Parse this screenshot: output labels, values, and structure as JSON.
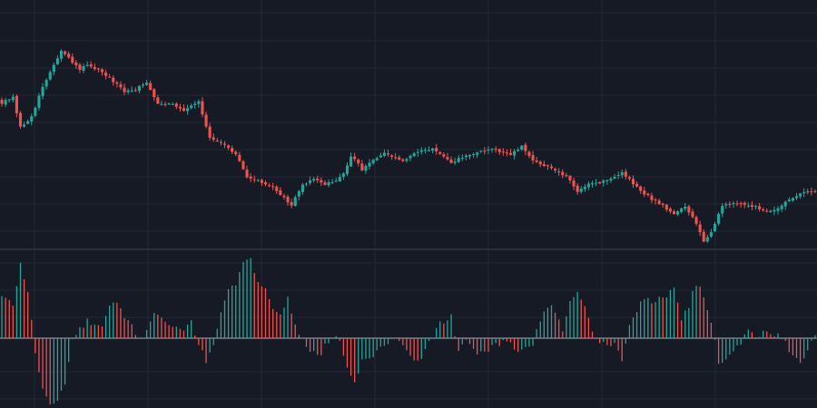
{
  "colors": {
    "background": "#161a25",
    "grid": "#232838",
    "pane_separator": "#2a2e39",
    "zero_line": "#aab0bc",
    "up": "#26a69a",
    "down": "#ef5350"
  },
  "chart_data": [
    {
      "type": "candlestick",
      "pane": "price",
      "title": "",
      "xlabel": "",
      "ylabel": "",
      "grid": true,
      "legend": "none",
      "ylim": [
        24,
        300
      ],
      "candle_count": 220,
      "close_keypoints": [
        [
          0,
          186
        ],
        [
          3,
          191
        ],
        [
          5,
          158
        ],
        [
          8,
          171
        ],
        [
          11,
          203
        ],
        [
          14,
          228
        ],
        [
          16,
          243
        ],
        [
          18,
          235
        ],
        [
          21,
          222
        ],
        [
          23,
          229
        ],
        [
          26,
          222
        ],
        [
          29,
          213
        ],
        [
          33,
          198
        ],
        [
          36,
          201
        ],
        [
          39,
          208
        ],
        [
          42,
          186
        ],
        [
          46,
          184
        ],
        [
          49,
          178
        ],
        [
          53,
          188
        ],
        [
          56,
          146
        ],
        [
          60,
          138
        ],
        [
          63,
          128
        ],
        [
          66,
          104
        ],
        [
          70,
          97
        ],
        [
          73,
          93
        ],
        [
          76,
          80
        ],
        [
          78,
          72
        ],
        [
          81,
          95
        ],
        [
          84,
          100
        ],
        [
          87,
          96
        ],
        [
          90,
          99
        ],
        [
          92,
          106
        ],
        [
          94,
          127
        ],
        [
          97,
          112
        ],
        [
          100,
          122
        ],
        [
          103,
          129
        ],
        [
          106,
          124
        ],
        [
          108,
          121
        ],
        [
          110,
          126
        ],
        [
          113,
          133
        ],
        [
          116,
          135
        ],
        [
          119,
          125
        ],
        [
          121,
          118
        ],
        [
          123,
          124
        ],
        [
          126,
          128
        ],
        [
          129,
          132
        ],
        [
          132,
          134
        ],
        [
          135,
          130
        ],
        [
          137,
          128
        ],
        [
          140,
          137
        ],
        [
          143,
          121
        ],
        [
          146,
          117
        ],
        [
          149,
          110
        ],
        [
          152,
          104
        ],
        [
          155,
          87
        ],
        [
          158,
          97
        ],
        [
          161,
          97
        ],
        [
          164,
          102
        ],
        [
          167,
          108
        ],
        [
          169,
          100
        ],
        [
          172,
          88
        ],
        [
          175,
          79
        ],
        [
          178,
          72
        ],
        [
          181,
          62
        ],
        [
          184,
          70
        ],
        [
          187,
          52
        ],
        [
          189,
          33
        ],
        [
          191,
          42
        ],
        [
          194,
          72
        ],
        [
          197,
          75
        ],
        [
          200,
          71
        ],
        [
          203,
          71
        ],
        [
          206,
          65
        ],
        [
          209,
          69
        ],
        [
          212,
          77
        ],
        [
          215,
          86
        ],
        [
          217,
          88
        ],
        [
          219,
          88
        ]
      ]
    },
    {
      "type": "histogram",
      "pane": "oscillator",
      "title": "",
      "xlabel": "",
      "ylabel": "",
      "grid": true,
      "legend": "none",
      "ylim": [
        -80,
        80
      ],
      "bar_count": 220,
      "value_keypoints": [
        [
          0,
          38
        ],
        [
          3,
          30
        ],
        [
          5,
          68
        ],
        [
          7,
          42
        ],
        [
          9,
          -12
        ],
        [
          11,
          -48
        ],
        [
          13,
          -60
        ],
        [
          15,
          -58
        ],
        [
          17,
          -40
        ],
        [
          19,
          -2
        ],
        [
          21,
          8
        ],
        [
          23,
          15
        ],
        [
          25,
          12
        ],
        [
          27,
          10
        ],
        [
          29,
          28
        ],
        [
          31,
          32
        ],
        [
          33,
          18
        ],
        [
          35,
          12
        ],
        [
          37,
          -2
        ],
        [
          39,
          8
        ],
        [
          41,
          24
        ],
        [
          43,
          20
        ],
        [
          45,
          12
        ],
        [
          47,
          8
        ],
        [
          49,
          6
        ],
        [
          51,
          18
        ],
        [
          53,
          -8
        ],
        [
          55,
          -20
        ],
        [
          57,
          -4
        ],
        [
          59,
          22
        ],
        [
          61,
          42
        ],
        [
          63,
          50
        ],
        [
          65,
          68
        ],
        [
          67,
          70
        ],
        [
          69,
          52
        ],
        [
          71,
          48
        ],
        [
          73,
          28
        ],
        [
          75,
          20
        ],
        [
          77,
          36
        ],
        [
          79,
          14
        ],
        [
          81,
          -2
        ],
        [
          83,
          -10
        ],
        [
          85,
          -18
        ],
        [
          87,
          -8
        ],
        [
          89,
          -2
        ],
        [
          91,
          0
        ],
        [
          93,
          -28
        ],
        [
          95,
          -40
        ],
        [
          97,
          -22
        ],
        [
          99,
          -18
        ],
        [
          101,
          -12
        ],
        [
          103,
          -6
        ],
        [
          105,
          -2
        ],
        [
          107,
          -2
        ],
        [
          109,
          -12
        ],
        [
          111,
          -22
        ],
        [
          113,
          -20
        ],
        [
          115,
          -4
        ],
        [
          117,
          10
        ],
        [
          119,
          15
        ],
        [
          121,
          20
        ],
        [
          123,
          -12
        ],
        [
          125,
          -4
        ],
        [
          127,
          -10
        ],
        [
          129,
          -14
        ],
        [
          131,
          -12
        ],
        [
          133,
          -6
        ],
        [
          135,
          -4
        ],
        [
          137,
          -6
        ],
        [
          139,
          -12
        ],
        [
          141,
          -6
        ],
        [
          143,
          -4
        ],
        [
          145,
          18
        ],
        [
          147,
          30
        ],
        [
          149,
          24
        ],
        [
          151,
          8
        ],
        [
          153,
          32
        ],
        [
          155,
          44
        ],
        [
          157,
          30
        ],
        [
          159,
          4
        ],
        [
          161,
          -2
        ],
        [
          163,
          -4
        ],
        [
          165,
          -6
        ],
        [
          167,
          -20
        ],
        [
          169,
          12
        ],
        [
          171,
          26
        ],
        [
          173,
          38
        ],
        [
          175,
          30
        ],
        [
          177,
          36
        ],
        [
          179,
          40
        ],
        [
          181,
          46
        ],
        [
          183,
          18
        ],
        [
          185,
          30
        ],
        [
          187,
          50
        ],
        [
          189,
          38
        ],
        [
          191,
          16
        ],
        [
          193,
          -22
        ],
        [
          195,
          -18
        ],
        [
          197,
          -10
        ],
        [
          199,
          -4
        ],
        [
          201,
          6
        ],
        [
          203,
          2
        ],
        [
          205,
          4
        ],
        [
          207,
          4
        ],
        [
          209,
          2
        ],
        [
          211,
          -4
        ],
        [
          213,
          -16
        ],
        [
          215,
          -22
        ],
        [
          217,
          -10
        ],
        [
          219,
          2
        ]
      ]
    }
  ]
}
